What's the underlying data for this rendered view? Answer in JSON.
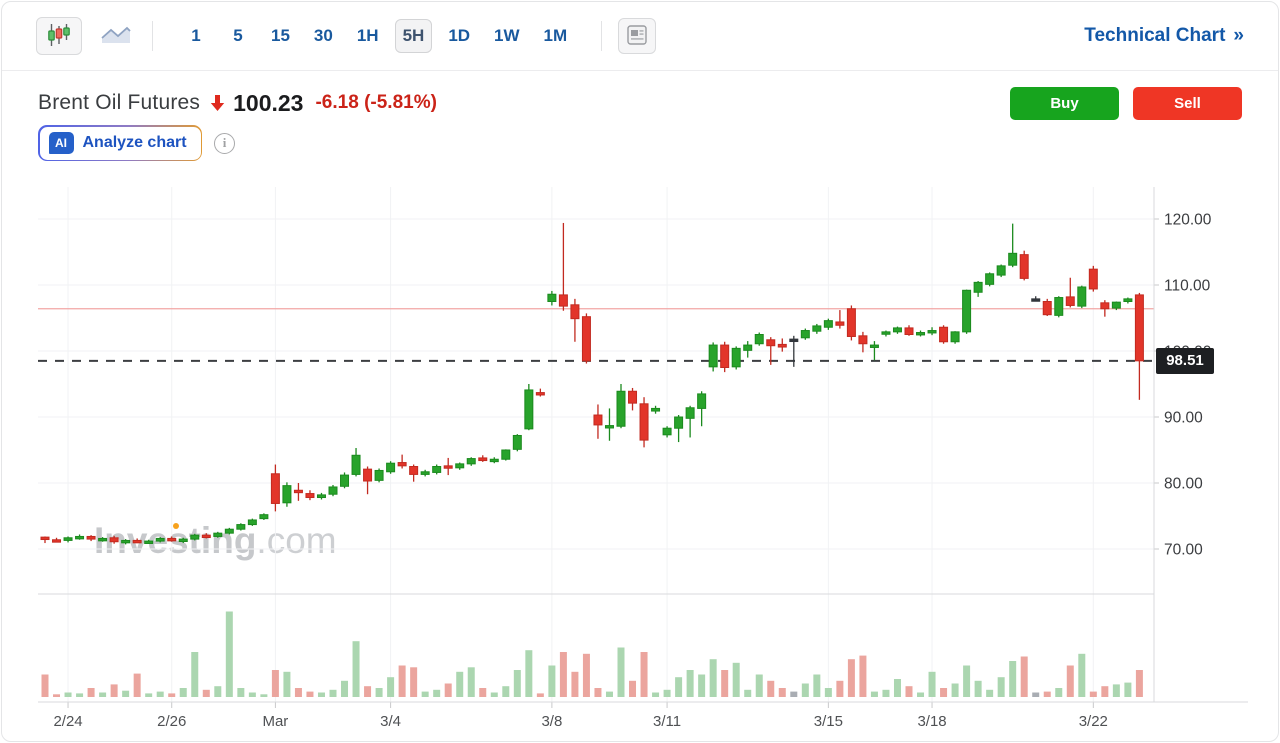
{
  "toolbar": {
    "intervals": [
      "1",
      "5",
      "15",
      "30",
      "1H",
      "5H",
      "1D",
      "1W",
      "1M"
    ],
    "active_interval": "5H",
    "technical_chart_label": "Technical Chart",
    "technical_chart_chevron": "»"
  },
  "header": {
    "instrument": "Brent Oil Futures",
    "price": "100.23",
    "change": "-6.18",
    "change_percent": "(-5.81%)",
    "buy_label": "Buy",
    "sell_label": "Sell"
  },
  "ai": {
    "badge": "AI",
    "label": "Analyze chart",
    "info_glyph": "i"
  },
  "watermark": {
    "main": "Investing",
    "suffix": ".com"
  },
  "icons": {
    "candlestick_chart": "candlestick-style-icon",
    "area_chart": "area-style-icon",
    "news": "news-panel-icon",
    "arrow_down": "price-down-arrow",
    "info": "info-icon"
  },
  "colors": {
    "toolbar_blue": "#19599e",
    "link_blue": "#1358a8",
    "buy_green": "#17a41e",
    "sell_red": "#ef3625",
    "change_red": "#cb2318",
    "candle_up": "#28a32b",
    "candle_up_stroke": "#1b8a1e",
    "candle_down": "#e2352a",
    "candle_down_stroke": "#c22a20",
    "candle_neutral": "#33373c",
    "volume_up": "#abd6b0",
    "volume_down": "#eba59e",
    "volume_neutral": "#a9adb3",
    "grid": "#f1f2f4",
    "axis_line": "#d9dadc",
    "tick_mark": "#c8c9cb",
    "reference_line_pink": "#f2a6a4",
    "last_price_line": "#3d3f42",
    "badge_bg": "#1d1f22",
    "badge_text": "#ffffff",
    "y_label_color": "#3b3d40",
    "x_label_color": "#4f5154"
  },
  "chart_data": {
    "type": "candlestick",
    "title": "Brent Oil Futures 5H candlestick chart with volume",
    "legend_position": "none",
    "grid": true,
    "y_axis_side": "right",
    "y_ticks": [
      {
        "label": "120.00",
        "value": 120
      },
      {
        "label": "110.00",
        "value": 110
      },
      {
        "label": "100.00",
        "value": 100
      },
      {
        "label": "90.00",
        "value": 90
      },
      {
        "label": "80.00",
        "value": 80
      },
      {
        "label": "70.00",
        "value": 70
      }
    ],
    "ylim": [
      68,
      121
    ],
    "x_tick_labels": [
      "2/24",
      "2/26",
      "Mar",
      "3/4",
      "3/8",
      "3/11",
      "3/15",
      "3/18",
      "3/22"
    ],
    "x_tick_indices": [
      2,
      11,
      20,
      30,
      44,
      54,
      68,
      77,
      91
    ],
    "last_price": 98.51,
    "last_price_label": "98.51",
    "reference_line_price": 106.4,
    "candles_ohlc": [
      [
        71.8,
        71.9,
        70.9,
        71.5
      ],
      [
        71.4,
        71.7,
        71.0,
        71.2
      ],
      [
        71.3,
        71.9,
        71.0,
        71.7
      ],
      [
        71.7,
        72.2,
        71.4,
        71.9
      ],
      [
        71.9,
        72.1,
        71.2,
        71.5
      ],
      [
        71.5,
        71.8,
        71.1,
        71.6
      ],
      [
        71.7,
        72.0,
        70.8,
        71.1
      ],
      [
        71.1,
        71.5,
        70.7,
        71.3
      ],
      [
        71.3,
        71.6,
        70.9,
        71.1
      ],
      [
        71.1,
        71.4,
        70.8,
        71.2
      ],
      [
        71.2,
        71.8,
        71.0,
        71.6
      ],
      [
        71.6,
        71.9,
        71.1,
        71.3
      ],
      [
        71.3,
        71.7,
        70.9,
        71.5
      ],
      [
        71.5,
        72.3,
        71.3,
        72.1
      ],
      [
        72.1,
        72.4,
        71.6,
        71.9
      ],
      [
        71.9,
        72.6,
        71.7,
        72.4
      ],
      [
        72.4,
        73.2,
        72.2,
        73.0
      ],
      [
        73.0,
        73.9,
        72.8,
        73.7
      ],
      [
        73.7,
        74.6,
        73.5,
        74.4
      ],
      [
        74.6,
        75.4,
        74.4,
        75.2
      ],
      [
        81.4,
        82.8,
        75.7,
        76.9
      ],
      [
        77.0,
        80.1,
        76.4,
        79.6
      ],
      [
        78.9,
        80.0,
        77.3,
        78.6
      ],
      [
        78.4,
        78.9,
        77.4,
        77.8
      ],
      [
        77.8,
        78.5,
        77.5,
        78.2
      ],
      [
        78.3,
        79.7,
        78.0,
        79.4
      ],
      [
        79.5,
        81.6,
        79.2,
        81.2
      ],
      [
        81.3,
        85.3,
        81.0,
        84.2
      ],
      [
        82.1,
        82.5,
        78.3,
        80.3
      ],
      [
        80.4,
        82.2,
        80.1,
        81.9
      ],
      [
        81.7,
        83.3,
        81.4,
        83.0
      ],
      [
        83.1,
        84.3,
        82.2,
        82.6
      ],
      [
        82.5,
        82.8,
        80.2,
        81.3
      ],
      [
        81.3,
        82.0,
        81.0,
        81.7
      ],
      [
        81.6,
        82.8,
        81.3,
        82.5
      ],
      [
        82.6,
        83.8,
        81.2,
        82.3
      ],
      [
        82.3,
        83.1,
        82.0,
        82.9
      ],
      [
        82.9,
        83.9,
        82.6,
        83.7
      ],
      [
        83.8,
        84.2,
        83.2,
        83.4
      ],
      [
        83.4,
        83.9,
        83.0,
        83.6
      ],
      [
        83.6,
        85.1,
        83.4,
        85.0
      ],
      [
        85.1,
        87.4,
        84.8,
        87.2
      ],
      [
        88.2,
        95.0,
        88.0,
        94.1
      ],
      [
        93.7,
        94.3,
        93.1,
        93.5
      ],
      [
        107.5,
        109.1,
        106.9,
        108.6
      ],
      [
        108.5,
        119.4,
        106.1,
        106.8
      ],
      [
        107.0,
        107.9,
        101.4,
        104.9
      ],
      [
        105.2,
        105.7,
        98.1,
        98.5
      ],
      [
        90.3,
        91.9,
        86.7,
        88.8
      ],
      [
        88.4,
        91.3,
        86.4,
        88.7
      ],
      [
        88.6,
        95.0,
        88.3,
        93.9
      ],
      [
        93.9,
        94.4,
        91.0,
        92.1
      ],
      [
        92.0,
        93.0,
        85.4,
        86.5
      ],
      [
        90.9,
        91.7,
        90.5,
        91.3
      ],
      [
        87.3,
        88.6,
        86.9,
        88.3
      ],
      [
        88.3,
        90.3,
        86.2,
        90.0
      ],
      [
        89.8,
        91.7,
        86.9,
        91.4
      ],
      [
        91.3,
        93.9,
        88.6,
        93.5
      ],
      [
        97.6,
        101.3,
        96.9,
        100.9
      ],
      [
        100.9,
        101.4,
        96.8,
        97.5
      ],
      [
        97.6,
        100.7,
        97.2,
        100.4
      ],
      [
        100.1,
        101.5,
        99.0,
        100.9
      ],
      [
        101.1,
        102.8,
        100.8,
        102.5
      ],
      [
        101.7,
        102.1,
        97.9,
        100.8
      ],
      [
        101.0,
        101.9,
        99.9,
        100.6
      ],
      [
        101.8,
        102.3,
        97.6,
        101.8
      ],
      [
        102.0,
        103.4,
        101.7,
        103.1
      ],
      [
        103.0,
        104.1,
        102.6,
        103.8
      ],
      [
        103.6,
        104.9,
        103.2,
        104.6
      ],
      [
        104.4,
        106.2,
        103.4,
        103.9
      ],
      [
        106.4,
        106.9,
        101.6,
        102.2
      ],
      [
        102.3,
        102.9,
        99.8,
        101.1
      ],
      [
        100.8,
        101.5,
        98.6,
        100.9
      ],
      [
        102.6,
        103.1,
        102.2,
        102.9
      ],
      [
        102.9,
        103.7,
        102.6,
        103.5
      ],
      [
        103.5,
        103.9,
        102.3,
        102.5
      ],
      [
        102.5,
        103.1,
        102.2,
        102.8
      ],
      [
        102.8,
        103.6,
        102.4,
        103.1
      ],
      [
        103.6,
        103.9,
        101.1,
        101.4
      ],
      [
        101.4,
        103.0,
        101.1,
        102.9
      ],
      [
        102.9,
        109.3,
        102.6,
        109.2
      ],
      [
        108.9,
        110.6,
        108.2,
        110.4
      ],
      [
        110.1,
        111.9,
        109.8,
        111.7
      ],
      [
        111.5,
        113.1,
        111.2,
        112.9
      ],
      [
        113.0,
        119.3,
        112.7,
        114.8
      ],
      [
        114.6,
        115.2,
        110.7,
        111.0
      ],
      [
        107.9,
        108.3,
        107.6,
        107.9
      ],
      [
        107.5,
        107.9,
        105.3,
        105.5
      ],
      [
        105.4,
        108.3,
        105.1,
        108.1
      ],
      [
        108.2,
        111.1,
        106.6,
        106.9
      ],
      [
        106.8,
        109.9,
        106.5,
        109.7
      ],
      [
        112.4,
        112.9,
        109.0,
        109.4
      ],
      [
        107.3,
        107.7,
        105.2,
        106.4
      ],
      [
        106.5,
        107.5,
        106.2,
        107.4
      ],
      [
        107.5,
        108.1,
        107.2,
        107.9
      ],
      [
        108.5,
        108.8,
        92.6,
        98.51
      ]
    ],
    "volumes_relative": [
      0.25,
      0.03,
      0.05,
      0.04,
      0.1,
      0.05,
      0.14,
      0.07,
      0.26,
      0.04,
      0.06,
      0.04,
      0.1,
      0.5,
      0.08,
      0.12,
      0.95,
      0.1,
      0.05,
      0.03,
      0.3,
      0.28,
      0.1,
      0.06,
      0.05,
      0.08,
      0.18,
      0.62,
      0.12,
      0.1,
      0.22,
      0.35,
      0.33,
      0.06,
      0.08,
      0.15,
      0.28,
      0.33,
      0.1,
      0.05,
      0.12,
      0.3,
      0.52,
      0.04,
      0.35,
      0.5,
      0.28,
      0.48,
      0.1,
      0.06,
      0.55,
      0.18,
      0.5,
      0.05,
      0.08,
      0.22,
      0.3,
      0.25,
      0.42,
      0.3,
      0.38,
      0.08,
      0.25,
      0.18,
      0.1,
      0.06,
      0.15,
      0.25,
      0.1,
      0.18,
      0.42,
      0.46,
      0.06,
      0.08,
      0.2,
      0.12,
      0.05,
      0.28,
      0.1,
      0.15,
      0.35,
      0.18,
      0.08,
      0.22,
      0.4,
      0.45,
      0.05,
      0.06,
      0.1,
      0.35,
      0.48,
      0.06,
      0.12,
      0.14,
      0.16,
      0.3
    ]
  }
}
